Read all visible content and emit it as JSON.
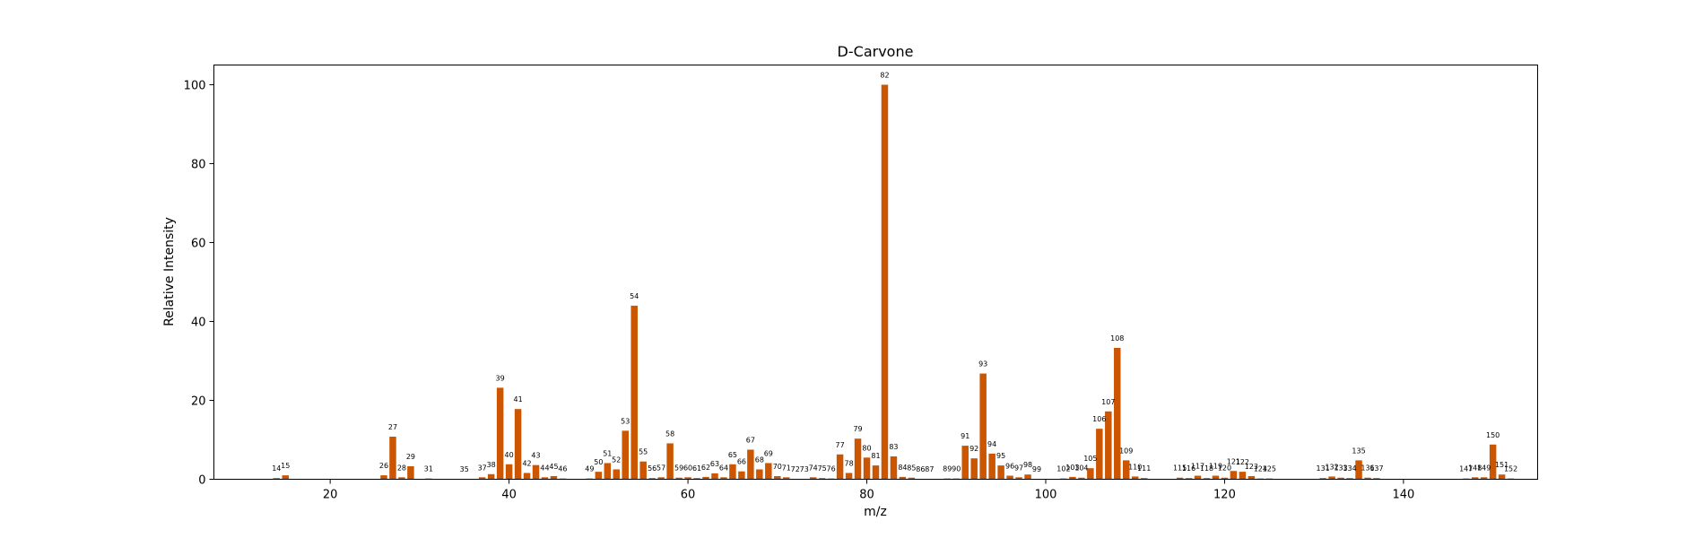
{
  "chart_data": {
    "type": "bar",
    "title": "D-Carvone",
    "xlabel": "m/z",
    "ylabel": "Relative Intensity",
    "xlim": [
      7,
      155
    ],
    "ylim": [
      0,
      105
    ],
    "xticks": [
      20,
      40,
      60,
      80,
      100,
      120,
      140
    ],
    "yticks": [
      0,
      20,
      40,
      60,
      80,
      100
    ],
    "bar_color": "#cc5500",
    "grid": false,
    "legend": "none",
    "x": [
      14,
      15,
      26,
      27,
      28,
      29,
      31,
      35,
      37,
      38,
      39,
      40,
      41,
      42,
      43,
      44,
      45,
      46,
      49,
      50,
      51,
      52,
      53,
      54,
      55,
      56,
      57,
      58,
      59,
      60,
      61,
      62,
      63,
      64,
      65,
      66,
      67,
      68,
      69,
      70,
      71,
      72,
      73,
      74,
      75,
      76,
      77,
      78,
      79,
      80,
      81,
      82,
      83,
      84,
      85,
      86,
      87,
      89,
      90,
      91,
      92,
      93,
      94,
      95,
      96,
      97,
      98,
      99,
      102,
      103,
      104,
      105,
      106,
      107,
      108,
      109,
      110,
      111,
      115,
      116,
      117,
      118,
      119,
      120,
      121,
      122,
      123,
      124,
      125,
      131,
      132,
      133,
      134,
      135,
      136,
      137,
      147,
      148,
      149,
      150,
      151,
      152
    ],
    "values": [
      0.3,
      1.0,
      1.0,
      10.8,
      0.5,
      3.3,
      0.2,
      0.1,
      0.5,
      1.3,
      23.2,
      3.8,
      17.8,
      1.6,
      3.6,
      0.5,
      0.8,
      0.2,
      0.2,
      1.9,
      4.1,
      2.5,
      12.3,
      44.0,
      4.5,
      0.3,
      0.5,
      9.1,
      0.4,
      0.5,
      0.3,
      0.6,
      1.5,
      0.5,
      3.8,
      2.0,
      7.5,
      2.5,
      4.1,
      0.8,
      0.5,
      0.1,
      0.1,
      0.5,
      0.3,
      0.2,
      6.3,
      1.6,
      10.3,
      5.5,
      3.5,
      100,
      5.8,
      0.6,
      0.4,
      0.1,
      0.1,
      0.2,
      0.2,
      8.5,
      5.3,
      26.8,
      6.5,
      3.5,
      0.9,
      0.5,
      1.2,
      0.1,
      0.2,
      0.6,
      0.4,
      2.8,
      12.8,
      17.2,
      33.3,
      4.8,
      0.7,
      0.3,
      0.4,
      0.3,
      0.9,
      0.3,
      0.9,
      0.4,
      2.1,
      1.9,
      0.8,
      0.2,
      0.2,
      0.3,
      0.7,
      0.4,
      0.3,
      4.8,
      0.4,
      0.3,
      0.2,
      0.5,
      0.5,
      8.8,
      1.2,
      0.2
    ]
  }
}
